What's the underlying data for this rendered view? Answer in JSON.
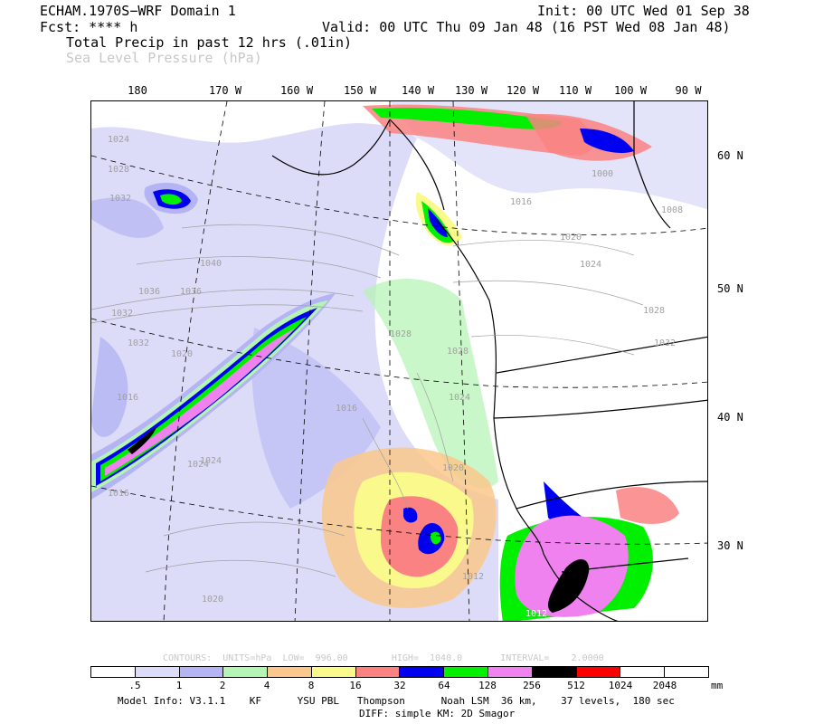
{
  "header": {
    "model": "ECHAM.1970S−WRF Domain 1",
    "init": "Init: 00 UTC Wed 01 Sep 38",
    "fcst": "Fcst: **** h",
    "valid": "Valid: 00 UTC Thu 09 Jan 48 (16 PST Wed 08 Jan 48)",
    "field_primary": "Total Precip in past 12 hrs (.01in)",
    "field_secondary": "Sea Level Pressure (hPa)"
  },
  "lon_labels": [
    "180",
    "170 W",
    "160 W",
    "150 W",
    "140 W",
    "130 W",
    "120 W",
    "110 W",
    "100 W",
    "90 W"
  ],
  "lat_labels": [
    "60 N",
    "50 N",
    "40 N",
    "30 N"
  ],
  "pressure_labels": [
    "1024",
    "1028",
    "1032",
    "1036",
    "1040",
    "1036",
    "1032",
    "1020",
    "1016",
    "1024",
    "1032",
    "1016",
    "1020",
    "1024",
    "1000",
    "1008",
    "1016",
    "1028",
    "1032",
    "1028",
    "1024",
    "1028",
    "1020",
    "1024",
    "1012",
    "1020",
    "1016",
    "1012"
  ],
  "contour_info": "CONTOURS:  UNITS=hPa  LOW=  996.00        HIGH=  1040.0       INTERVAL=    2.0000",
  "colorbar": {
    "colors": [
      "#ffffff",
      "#dcdcf8",
      "#b4b4f4",
      "#b4f4b4",
      "#fac88c",
      "#fafa8c",
      "#fa8282",
      "#0000f0",
      "#00f000",
      "#f082f0",
      "#000000",
      "#fa0000",
      "#ffffff",
      "#ffffff"
    ],
    "ticks": [
      ".5",
      "1",
      "2",
      "4",
      "8",
      "16",
      "32",
      "64",
      "128",
      "256",
      "512",
      "1024",
      "2048"
    ],
    "unit": "mm"
  },
  "footer": {
    "line1": "Model Info: V3.1.1    KF      YSU PBL   Thompson      Noah LSM  36 km,    37 levels,  180 sec",
    "line2": "DIFF: simple KM: 2D Smagor"
  }
}
